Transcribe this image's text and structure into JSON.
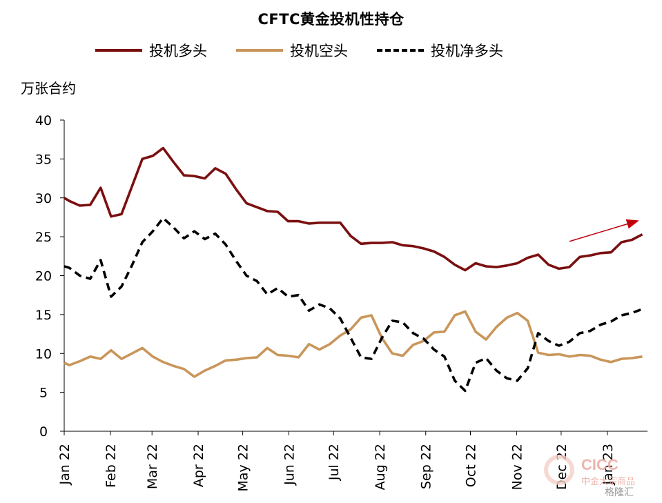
{
  "title": "CFTC黄金投机性持仓",
  "unit_label": "万张合约",
  "watermark": {
    "brand": "CICC",
    "brand_cn": "中金大宗商品",
    "platform": "格隆汇"
  },
  "colors": {
    "long": "#7b0f10",
    "short": "#c9965a",
    "net": "#000000",
    "arrow": "#c0000c"
  },
  "chart_data": {
    "type": "line",
    "title": "CFTC黄金投机性持仓",
    "ylabel": "万张合约",
    "ylim": [
      0,
      40
    ],
    "yticks": [
      0,
      5,
      10,
      15,
      20,
      25,
      30,
      35,
      40
    ],
    "xlim": [
      0,
      56
    ],
    "x_ticks": [
      {
        "label": "Jan 22",
        "x": 0
      },
      {
        "label": "Feb 22",
        "x": 4.43
      },
      {
        "label": "Mar 22",
        "x": 8.43
      },
      {
        "label": "Apr 22",
        "x": 12.86
      },
      {
        "label": "May 22",
        "x": 17.14
      },
      {
        "label": "Jun 22",
        "x": 21.57
      },
      {
        "label": "Jul 22",
        "x": 25.86
      },
      {
        "label": "Aug 22",
        "x": 30.29
      },
      {
        "label": "Sep 22",
        "x": 34.71
      },
      {
        "label": "Oct 22",
        "x": 39.0
      },
      {
        "label": "Nov 22",
        "x": 43.43
      },
      {
        "label": "Dec 22",
        "x": 47.71
      },
      {
        "label": "Jan 23",
        "x": 52.14
      }
    ],
    "legend": "top",
    "grid": false,
    "series": [
      {
        "name": "投机多头",
        "style": "solid",
        "points": [
          [
            0,
            30.0
          ],
          [
            0.5,
            29.6
          ],
          [
            1.5,
            29.0
          ],
          [
            2.5,
            29.1
          ],
          [
            3.5,
            31.3
          ],
          [
            4.5,
            27.6
          ],
          [
            5.5,
            27.9
          ],
          [
            7.5,
            35.0
          ],
          [
            8.5,
            35.4
          ],
          [
            9.5,
            36.4
          ],
          [
            10.5,
            34.6
          ],
          [
            11.5,
            32.9
          ],
          [
            12.5,
            32.8
          ],
          [
            13.5,
            32.5
          ],
          [
            14.5,
            33.8
          ],
          [
            15.5,
            33.1
          ],
          [
            16.5,
            31.1
          ],
          [
            17.5,
            29.3
          ],
          [
            18.5,
            28.8
          ],
          [
            19.5,
            28.3
          ],
          [
            20.5,
            28.2
          ],
          [
            21.5,
            27.0
          ],
          [
            22.5,
            27.0
          ],
          [
            23.5,
            26.7
          ],
          [
            24.5,
            26.8
          ],
          [
            25.5,
            26.8
          ],
          [
            26.5,
            26.8
          ],
          [
            27.5,
            25.1
          ],
          [
            28.5,
            24.1
          ],
          [
            29.5,
            24.2
          ],
          [
            30.5,
            24.2
          ],
          [
            31.5,
            24.3
          ],
          [
            32.5,
            23.9
          ],
          [
            33.5,
            23.8
          ],
          [
            34.5,
            23.5
          ],
          [
            35.5,
            23.1
          ],
          [
            36.5,
            22.4
          ],
          [
            37.5,
            21.4
          ],
          [
            38.5,
            20.7
          ],
          [
            39.5,
            21.6
          ],
          [
            40.5,
            21.2
          ],
          [
            41.5,
            21.1
          ],
          [
            42.5,
            21.3
          ],
          [
            43.5,
            21.6
          ],
          [
            44.5,
            22.3
          ],
          [
            45.5,
            22.7
          ],
          [
            46.5,
            21.4
          ],
          [
            47.5,
            20.9
          ],
          [
            48.5,
            21.1
          ],
          [
            49.5,
            22.4
          ],
          [
            50.5,
            22.6
          ],
          [
            51.5,
            22.9
          ],
          [
            52.5,
            23.0
          ],
          [
            53.5,
            24.3
          ],
          [
            54.5,
            24.6
          ],
          [
            55.5,
            25.3
          ]
        ]
      },
      {
        "name": "投机空头",
        "style": "solid",
        "points": [
          [
            0,
            8.8
          ],
          [
            0.5,
            8.5
          ],
          [
            1.5,
            9.0
          ],
          [
            2.5,
            9.6
          ],
          [
            3.5,
            9.3
          ],
          [
            4.5,
            10.4
          ],
          [
            5.5,
            9.3
          ],
          [
            6.5,
            10.0
          ],
          [
            7.5,
            10.7
          ],
          [
            8.5,
            9.6
          ],
          [
            9.5,
            8.9
          ],
          [
            10.5,
            8.4
          ],
          [
            11.5,
            8.0
          ],
          [
            12.5,
            7.0
          ],
          [
            13.5,
            7.8
          ],
          [
            14.5,
            8.4
          ],
          [
            15.5,
            9.1
          ],
          [
            16.5,
            9.2
          ],
          [
            17.5,
            9.4
          ],
          [
            18.5,
            9.5
          ],
          [
            19.5,
            10.7
          ],
          [
            20.5,
            9.8
          ],
          [
            21.5,
            9.7
          ],
          [
            22.5,
            9.5
          ],
          [
            23.5,
            11.2
          ],
          [
            24.5,
            10.5
          ],
          [
            25.5,
            11.2
          ],
          [
            26.5,
            12.3
          ],
          [
            27.5,
            13.1
          ],
          [
            28.5,
            14.6
          ],
          [
            29.5,
            14.9
          ],
          [
            30.5,
            12.0
          ],
          [
            31.5,
            10.0
          ],
          [
            32.5,
            9.7
          ],
          [
            33.5,
            11.1
          ],
          [
            34.5,
            11.6
          ],
          [
            35.5,
            12.7
          ],
          [
            36.5,
            12.8
          ],
          [
            37.5,
            14.9
          ],
          [
            38.5,
            15.4
          ],
          [
            39.5,
            12.8
          ],
          [
            40.5,
            11.8
          ],
          [
            41.5,
            13.4
          ],
          [
            42.5,
            14.6
          ],
          [
            43.5,
            15.2
          ],
          [
            44.5,
            14.2
          ],
          [
            45.5,
            10.1
          ],
          [
            46.5,
            9.8
          ],
          [
            47.5,
            9.9
          ],
          [
            48.5,
            9.6
          ],
          [
            49.5,
            9.8
          ],
          [
            50.5,
            9.7
          ],
          [
            51.5,
            9.2
          ],
          [
            52.5,
            8.9
          ],
          [
            53.5,
            9.3
          ],
          [
            54.5,
            9.4
          ],
          [
            55.5,
            9.6
          ]
        ]
      },
      {
        "name": "投机净多头",
        "style": "dashed",
        "points": [
          [
            0,
            21.2
          ],
          [
            0.5,
            21.0
          ],
          [
            1.5,
            20.0
          ],
          [
            2.5,
            19.6
          ],
          [
            3.5,
            22.0
          ],
          [
            4.5,
            17.3
          ],
          [
            5.5,
            18.6
          ],
          [
            6.5,
            21.3
          ],
          [
            7.5,
            24.3
          ],
          [
            8.5,
            25.7
          ],
          [
            9.5,
            27.4
          ],
          [
            10.5,
            26.2
          ],
          [
            11.5,
            24.8
          ],
          [
            12.5,
            25.7
          ],
          [
            13.5,
            24.7
          ],
          [
            14.5,
            25.4
          ],
          [
            15.5,
            24.0
          ],
          [
            16.5,
            21.9
          ],
          [
            17.5,
            20.0
          ],
          [
            18.5,
            19.3
          ],
          [
            19.5,
            17.6
          ],
          [
            20.5,
            18.4
          ],
          [
            21.5,
            17.3
          ],
          [
            22.5,
            17.5
          ],
          [
            23.5,
            15.5
          ],
          [
            24.5,
            16.3
          ],
          [
            25.5,
            15.8
          ],
          [
            26.5,
            14.5
          ],
          [
            27.5,
            12.0
          ],
          [
            28.5,
            9.5
          ],
          [
            29.5,
            9.3
          ],
          [
            30.5,
            12.0
          ],
          [
            31.5,
            14.2
          ],
          [
            32.5,
            14.0
          ],
          [
            33.5,
            12.6
          ],
          [
            34.5,
            11.9
          ],
          [
            35.5,
            10.5
          ],
          [
            36.5,
            9.6
          ],
          [
            37.5,
            6.5
          ],
          [
            38.5,
            5.2
          ],
          [
            39.5,
            8.8
          ],
          [
            40.5,
            9.4
          ],
          [
            41.5,
            7.8
          ],
          [
            42.5,
            6.8
          ],
          [
            43.5,
            6.5
          ],
          [
            44.5,
            8.1
          ],
          [
            45.5,
            12.6
          ],
          [
            46.5,
            11.6
          ],
          [
            47.5,
            11.0
          ],
          [
            48.5,
            11.5
          ],
          [
            49.5,
            12.6
          ],
          [
            50.5,
            12.9
          ],
          [
            51.5,
            13.7
          ],
          [
            52.5,
            14.1
          ],
          [
            53.5,
            14.9
          ],
          [
            54.5,
            15.2
          ],
          [
            55.5,
            15.7
          ]
        ]
      }
    ],
    "annotations": [
      {
        "type": "arrow",
        "from": [
          48.5,
          24.4
        ],
        "to": [
          55.2,
          27.1
        ],
        "color": "#c0000c"
      }
    ]
  }
}
